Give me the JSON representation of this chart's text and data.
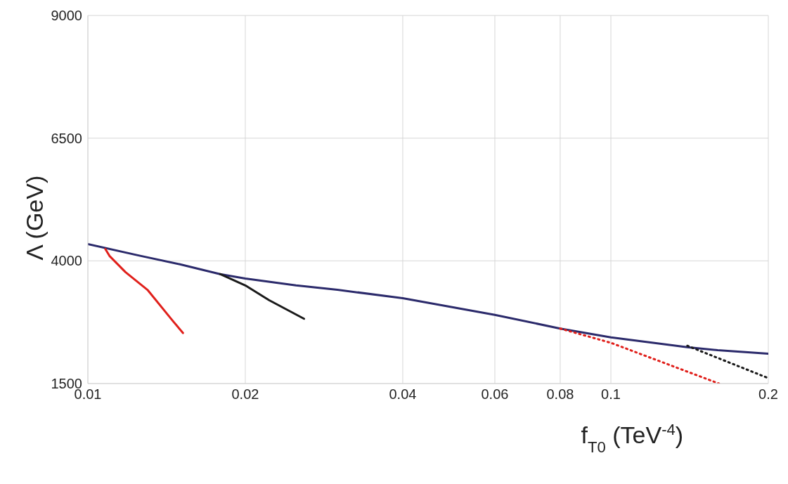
{
  "chart_data": {
    "type": "line",
    "xlabel": "f$_{T0}$ (TeV$^{-4}$)",
    "ylabel": "Λ (GeV)",
    "log": "x",
    "grid": true,
    "legend": false,
    "marker": "none",
    "xlim": [
      0.01,
      0.2
    ],
    "xticks": [
      0.01,
      0.02,
      0.04,
      0.06,
      0.08,
      0.1,
      0.2
    ],
    "ylim": [
      1500,
      9000
    ],
    "yticks": [
      1500,
      4000,
      6500,
      9000
    ],
    "series": [
      {
        "color": "#2b2a6b",
        "line_style": "solid",
        "x": [
          0.01,
          0.0125,
          0.015,
          0.0179,
          0.02,
          0.025,
          0.03,
          0.04,
          0.06,
          0.08,
          0.1,
          0.14,
          0.16,
          0.2
        ],
        "values": [
          4340,
          4110,
          3930,
          3730,
          3640,
          3500,
          3410,
          3240,
          2900,
          2620,
          2440,
          2240,
          2180,
          2110
        ]
      },
      {
        "color": "#e0201b",
        "line_style": "solid",
        "x": [
          0.0108,
          0.011,
          0.0118,
          0.013,
          0.0145,
          0.0152
        ],
        "values": [
          4240,
          4100,
          3770,
          3410,
          2790,
          2530
        ]
      },
      {
        "color": "#1a1a1a",
        "line_style": "solid",
        "x": [
          0.0179,
          0.02,
          0.0222,
          0.0259
        ],
        "values": [
          3730,
          3500,
          3200,
          2820
        ]
      },
      {
        "color": "#e0201b",
        "line_style": "dotted",
        "x": [
          0.08,
          0.1,
          0.1609
        ],
        "values": [
          2620,
          2330,
          1500
        ]
      },
      {
        "color": "#1a1a1a",
        "line_style": "dotted",
        "x": [
          0.14,
          0.2
        ],
        "values": [
          2270,
          1610
        ]
      }
    ]
  }
}
